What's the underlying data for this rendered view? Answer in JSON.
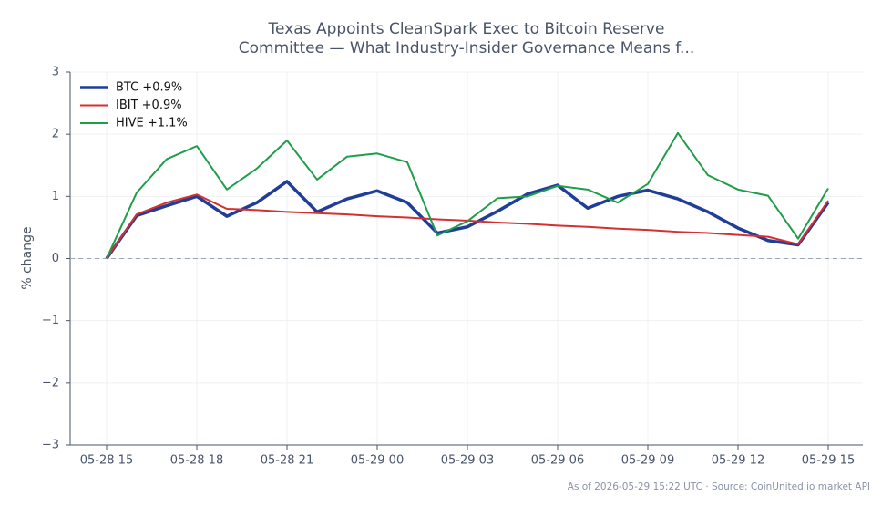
{
  "chart_data": {
    "type": "line",
    "title": [
      "Texas Appoints CleanSpark Exec to Bitcoin Reserve",
      "Committee — What Industry-Insider Governance Means f..."
    ],
    "y_label": "% change",
    "source": "As of 2026-05-29 15:22 UTC · Source: CoinUnited.io market API",
    "categories": [
      "05-28 15",
      null,
      null,
      "05-28 18",
      null,
      null,
      "05-28 21",
      null,
      null,
      "05-29 00",
      null,
      null,
      "05-29 03",
      null,
      null,
      "05-29 06",
      null,
      null,
      "05-29 09",
      null,
      null,
      "05-29 12",
      null,
      null,
      "05-29 15"
    ],
    "series": [
      {
        "name": "BTC +0.9%",
        "color": "#1f3d99",
        "width": 3.5,
        "values": [
          0,
          0.69,
          0.85,
          1.0,
          0.68,
          0.9,
          1.24,
          0.75,
          0.96,
          1.09,
          0.9,
          0.41,
          0.51,
          0.76,
          1.04,
          1.18,
          0.81,
          1.0,
          1.1,
          0.96,
          0.75,
          0.49,
          0.29,
          0.22,
          0.9
        ]
      },
      {
        "name": "IBIT +0.9%",
        "color": "#d62f2f",
        "width": 2,
        "values": [
          0,
          0.71,
          0.9,
          1.03,
          0.8,
          0.78,
          0.75,
          0.73,
          0.71,
          0.68,
          0.66,
          0.63,
          0.61,
          0.58,
          0.56,
          0.53,
          0.51,
          0.48,
          0.46,
          0.43,
          0.41,
          0.38,
          0.35,
          0.23,
          0.93
        ]
      },
      {
        "name": "HIVE +1.1%",
        "color": "#1f9e4a",
        "width": 2,
        "values": [
          0,
          1.06,
          1.6,
          1.81,
          1.11,
          1.45,
          1.9,
          1.27,
          1.64,
          1.69,
          1.55,
          0.37,
          0.6,
          0.97,
          1.0,
          1.17,
          1.11,
          0.9,
          1.2,
          2.02,
          1.34,
          1.11,
          1.01,
          0.32,
          1.13
        ]
      }
    ],
    "ylim": [
      -3,
      3
    ],
    "yticks": [
      {
        "value": -3,
        "label": "−3"
      },
      {
        "value": -2,
        "label": "−2"
      },
      {
        "value": -1,
        "label": "−1"
      },
      0,
      1,
      2,
      3
    ],
    "zero_line": 0,
    "grid": true,
    "legend": "upper left"
  }
}
